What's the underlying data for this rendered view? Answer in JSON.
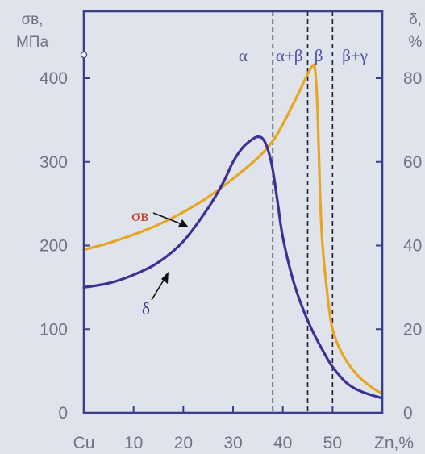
{
  "chart_data": {
    "type": "line",
    "x_axis": {
      "label": "Zn,%",
      "range": [
        0,
        60
      ],
      "ticks": [
        {
          "value": 0,
          "label": "Cu"
        },
        {
          "value": 10,
          "label": "10"
        },
        {
          "value": 20,
          "label": "20"
        },
        {
          "value": 30,
          "label": "30"
        },
        {
          "value": 40,
          "label": "40"
        },
        {
          "value": 50,
          "label": "50"
        }
      ]
    },
    "y_left": {
      "label_line1": "σв,",
      "label_line2": "МПа",
      "range": [
        0,
        480
      ],
      "ticks": [
        0,
        100,
        200,
        300,
        400
      ]
    },
    "y_right": {
      "label_line1": "δ,",
      "label_line2": "%",
      "range": [
        0,
        96
      ],
      "ticks": [
        0,
        20,
        40,
        60,
        80
      ]
    },
    "phase_boundaries": [
      38,
      45,
      50
    ],
    "phase_labels": [
      {
        "text": "α",
        "x": 32
      },
      {
        "text": "α+β",
        "x": 41.3
      },
      {
        "text": "β",
        "x": 47.2
      },
      {
        "text": "β+γ",
        "x": 54.5
      }
    ],
    "series": [
      {
        "name": "σв",
        "axis": "left",
        "color": "#e8a51e",
        "x": [
          0,
          5,
          10,
          15,
          20,
          25,
          30,
          35,
          38,
          40,
          43,
          45,
          46,
          46.5,
          47,
          47.5,
          48,
          49,
          50,
          52,
          55,
          58,
          60
        ],
        "y": [
          195,
          203,
          213,
          225,
          240,
          258,
          280,
          305,
          325,
          345,
          380,
          405,
          415,
          410,
          360,
          260,
          200,
          140,
          100,
          70,
          45,
          30,
          23
        ]
      },
      {
        "name": "δ",
        "axis": "right",
        "color": "#3c2f96",
        "x": [
          0,
          5,
          10,
          15,
          20,
          25,
          28,
          30,
          32,
          34,
          35,
          36,
          37,
          38,
          39,
          40,
          42,
          44,
          46,
          48,
          50,
          53,
          56,
          60
        ],
        "y": [
          30,
          31,
          33,
          36,
          41,
          49,
          55,
          60,
          63.5,
          65.5,
          66,
          65.5,
          63,
          58,
          50,
          42,
          32,
          25,
          19.5,
          15,
          11,
          7,
          5,
          3.5
        ]
      }
    ],
    "annotations": [
      {
        "text": "σв",
        "color": "#c23a22"
      },
      {
        "text": "δ",
        "color": "#3c2f96"
      }
    ],
    "grid": false
  }
}
